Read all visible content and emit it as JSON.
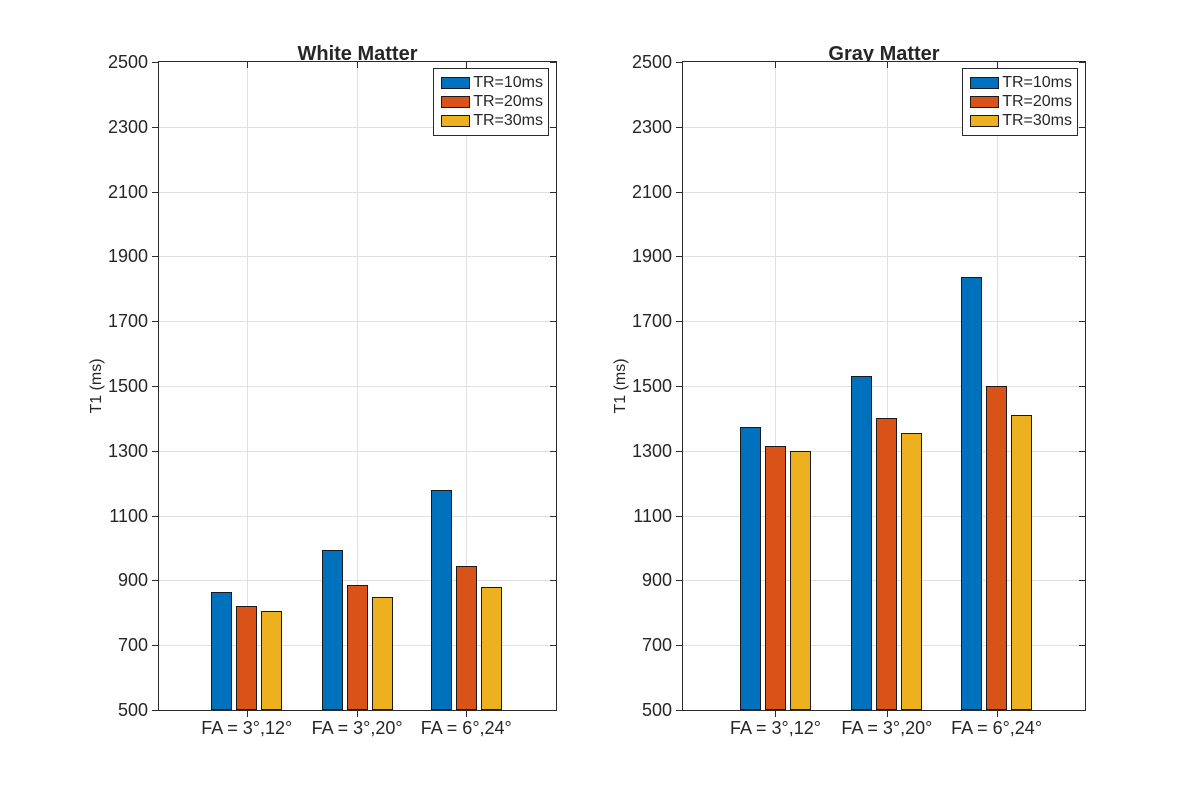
{
  "figure": {
    "background": "#ffffff",
    "axis_color": "#262626",
    "line_color": "#2b2b2b",
    "grid_color": "#e0e0e0",
    "bar_edge_color": "#1a1a1a"
  },
  "chart_data": [
    {
      "type": "bar",
      "title": "White Matter",
      "ylabel": "T1 (ms)",
      "xlabel": "",
      "ylim": [
        500,
        2500
      ],
      "ytick_step": 200,
      "grid": true,
      "legend_position": "top-right",
      "categories": [
        "FA = 3°,12°",
        "FA = 3°,20°",
        "FA = 6°,24°"
      ],
      "series": [
        {
          "name": "TR=10ms",
          "color": "#0072BD",
          "values": [
            865,
            995,
            1180
          ]
        },
        {
          "name": "TR=20ms",
          "color": "#D95319",
          "values": [
            820,
            885,
            945
          ]
        },
        {
          "name": "TR=30ms",
          "color": "#EDB120",
          "values": [
            805,
            850,
            880
          ]
        }
      ]
    },
    {
      "type": "bar",
      "title": "Gray Matter",
      "ylabel": "T1 (ms)",
      "xlabel": "",
      "ylim": [
        500,
        2500
      ],
      "ytick_step": 200,
      "grid": true,
      "legend_position": "top-right",
      "categories": [
        "FA = 3°,12°",
        "FA = 3°,20°",
        "FA = 6°,24°"
      ],
      "series": [
        {
          "name": "TR=10ms",
          "color": "#0072BD",
          "values": [
            1375,
            1530,
            1835
          ]
        },
        {
          "name": "TR=20ms",
          "color": "#D95319",
          "values": [
            1315,
            1400,
            1500
          ]
        },
        {
          "name": "TR=30ms",
          "color": "#EDB120",
          "values": [
            1300,
            1355,
            1410
          ]
        }
      ]
    }
  ]
}
